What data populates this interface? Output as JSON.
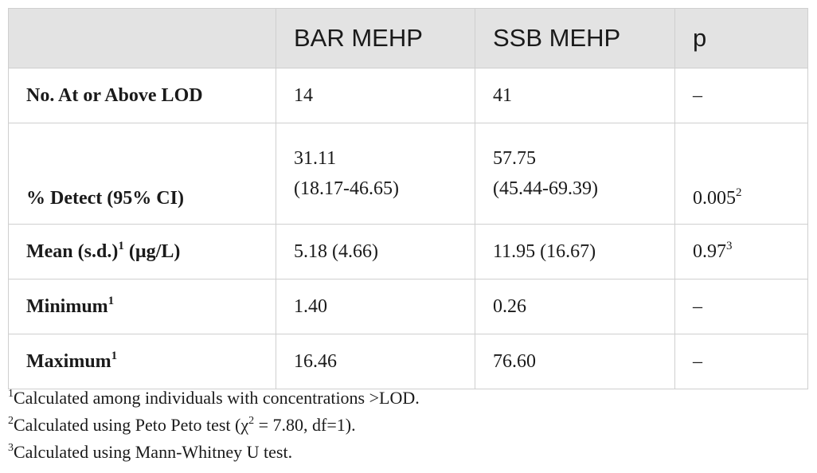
{
  "table": {
    "headers": [
      "",
      "BAR MEHP",
      "SSB MEHP",
      "p"
    ],
    "rows": [
      {
        "label": "No. At or Above LOD",
        "label_sup": "",
        "label_suffix": "",
        "bar": "14",
        "bar_line2": "",
        "ssb": "41",
        "ssb_line2": "",
        "p": "–",
        "p_sup": ""
      },
      {
        "label": "% Detect (95% CI)",
        "label_sup": "",
        "label_suffix": "",
        "bar": "31.11",
        "bar_line2": "(18.17-46.65)",
        "ssb": "57.75",
        "ssb_line2": "(45.44-69.39)",
        "p": "0.005",
        "p_sup": "2"
      },
      {
        "label": "Mean (s.d.)",
        "label_sup": "1",
        "label_suffix": " (µg/L)",
        "bar": "5.18 (4.66)",
        "bar_line2": "",
        "ssb": "11.95 (16.67)",
        "ssb_line2": "",
        "p": "0.97",
        "p_sup": "3"
      },
      {
        "label": "Minimum",
        "label_sup": "1",
        "label_suffix": "",
        "bar": "1.40",
        "bar_line2": "",
        "ssb": "0.26",
        "ssb_line2": "",
        "p": "–",
        "p_sup": ""
      },
      {
        "label": "Maximum",
        "label_sup": "1",
        "label_suffix": "",
        "bar": "16.46",
        "bar_line2": "",
        "ssb": "76.60",
        "ssb_line2": "",
        "p": "–",
        "p_sup": ""
      }
    ]
  },
  "footnotes": [
    {
      "mark": "1",
      "text": "Calculated among individuals with concentrations >LOD."
    },
    {
      "mark": "2",
      "text_before": "Calculated using Peto Peto test (",
      "chi": "χ",
      "chi_sup": "2",
      "text_after": " = 7.80, df=1)."
    },
    {
      "mark": "3",
      "text": "Calculated using Mann-Whitney U test."
    }
  ],
  "colors": {
    "header_bg": "#e3e3e3",
    "border": "#cfcfcf",
    "text": "#1a1a1a"
  }
}
